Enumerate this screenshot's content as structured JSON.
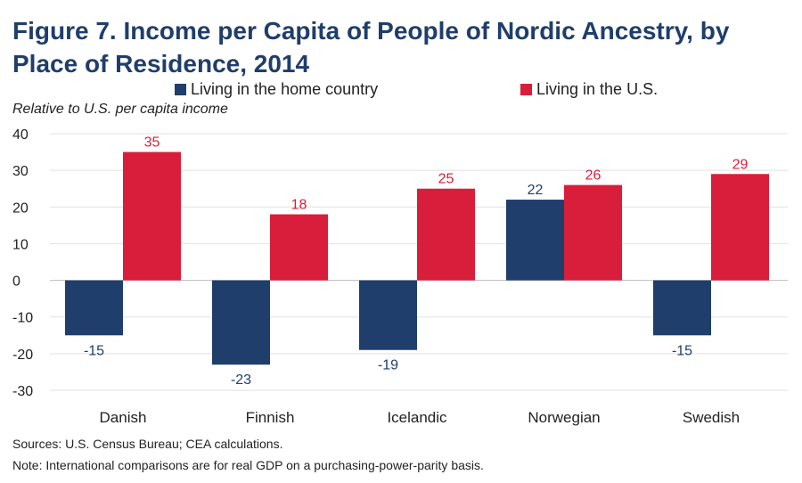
{
  "chart_data": {
    "type": "bar",
    "title": "Figure 7. Income per Capita of People of Nordic Ancestry, by Place of Residence, 2014",
    "ylabel": "Relative to U.S. per capita income",
    "xlabel": "",
    "categories": [
      "Danish",
      "Finnish",
      "Icelandic",
      "Norwegian",
      "Swedish"
    ],
    "series": [
      {
        "name": "Living in the home country",
        "values": [
          -15,
          -23,
          -19,
          22,
          -15
        ],
        "color": "#1f3e6b",
        "labels": [
          "-15",
          "-23",
          "-19",
          "22",
          "-15"
        ]
      },
      {
        "name": "Living in the U.S.",
        "values": [
          35,
          18,
          25,
          26,
          29
        ],
        "color": "#d81e3a",
        "labels": [
          "35",
          "18",
          "25",
          "26",
          "29"
        ]
      }
    ],
    "ylim": [
      -30,
      40
    ],
    "yticks": [
      40,
      30,
      20,
      10,
      0,
      -10,
      -20,
      -30
    ],
    "ytick_labels": [
      "40",
      "30",
      "20",
      "10",
      "0",
      "-10",
      "-20",
      "-30"
    ],
    "grid": true,
    "legend_position": "top"
  },
  "notes": {
    "sources": "Sources: U.S. Census Bureau; CEA calculations.",
    "note": "Note: International comparisons are for real GDP on a purchasing-power-parity basis."
  }
}
